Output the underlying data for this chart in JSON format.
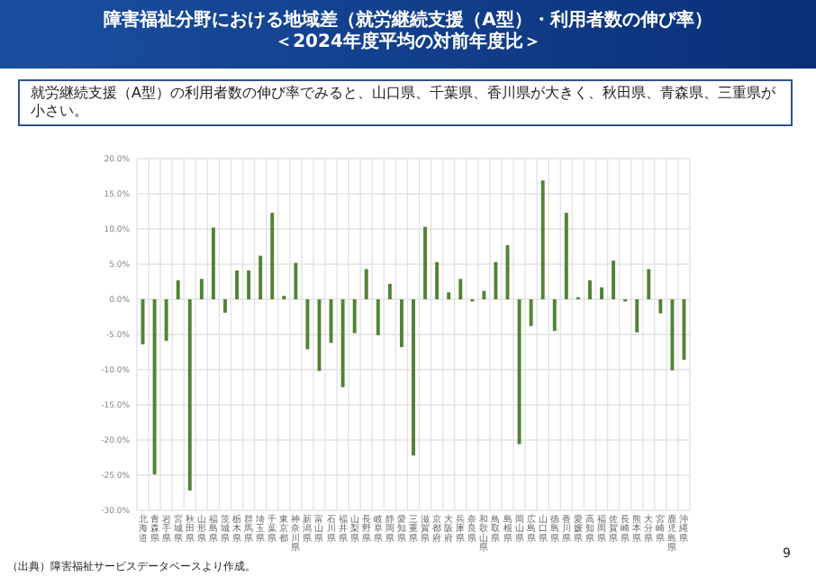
{
  "chart_data": {
    "type": "bar",
    "title": "障害福祉分野における地域差（就労継続支援（A型）・利用者数の伸び率）",
    "subtitle": "＜2024年度平均の対前年度比＞",
    "annotations": [
      "就労継続支援（A型）の利用者数の伸び率でみると、山口県、千葉県、香川県が大きく、秋田県、青森県、三重県が小さい。",
      "（出典）障害福祉サービスデータベースより作成。",
      "9"
    ],
    "categories": [
      "北海道",
      "青森県",
      "岩手県",
      "宮城県",
      "秋田県",
      "山形県",
      "福島県",
      "茨城県",
      "栃木県",
      "群馬県",
      "埼玉県",
      "千葉県",
      "東京都",
      "神奈川県",
      "新潟県",
      "富山県",
      "石川県",
      "福井県",
      "山梨県",
      "長野県",
      "岐阜県",
      "静岡県",
      "愛知県",
      "三重県",
      "滋賀県",
      "京都府",
      "大阪府",
      "兵庫県",
      "奈良県",
      "和歌山県",
      "鳥取県",
      "島根県",
      "岡山県",
      "広島県",
      "山口県",
      "徳島県",
      "香川県",
      "愛媛県",
      "高知県",
      "福岡県",
      "佐賀県",
      "長崎県",
      "熊本県",
      "大分県",
      "宮崎県",
      "鹿児島県",
      "沖縄県"
    ],
    "values": [
      -6.4,
      -24.9,
      -5.9,
      2.7,
      -27.2,
      2.9,
      10.2,
      -1.9,
      4.1,
      4.1,
      6.2,
      12.3,
      0.5,
      5.2,
      -7.1,
      -10.2,
      -6.2,
      -12.5,
      -4.8,
      4.3,
      -5.1,
      2.2,
      -6.8,
      -22.2,
      10.3,
      5.3,
      1.0,
      2.9,
      -0.3,
      1.2,
      5.3,
      7.7,
      -20.6,
      -3.8,
      16.9,
      -4.5,
      12.3,
      0.3,
      2.7,
      1.7,
      5.5,
      -0.3,
      -4.7,
      4.3,
      -2.0,
      -10.1,
      -8.6
    ],
    "color": "#548235",
    "ylim": [
      -30,
      20
    ],
    "yticks": [
      {
        "value": -30,
        "label": "-30.0%"
      },
      {
        "value": -25,
        "label": "-25.0%"
      },
      {
        "value": -20,
        "label": "-20.0%"
      },
      {
        "value": -15,
        "label": "-15.0%"
      },
      {
        "value": -10,
        "label": "-10.0%"
      },
      {
        "value": -5,
        "label": "-5.0%"
      },
      {
        "value": 0,
        "label": "0.0%"
      },
      {
        "value": 5,
        "label": "5.0%"
      },
      {
        "value": 10,
        "label": "10.0%"
      },
      {
        "value": 15,
        "label": "15.0%"
      },
      {
        "value": 20,
        "label": "20.0%"
      }
    ],
    "grid": true
  }
}
